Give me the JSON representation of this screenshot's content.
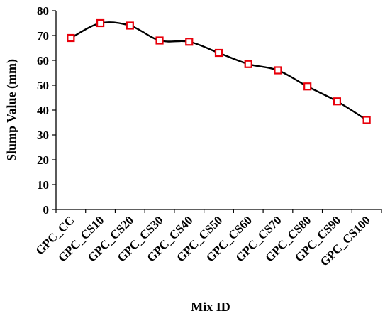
{
  "chart_data": {
    "type": "line",
    "categories": [
      "GPC_CC",
      "GPC_CS10",
      "GPC_CS20",
      "GPC_CS30",
      "GPC_CS40",
      "GPC_CS50",
      "GPC_CS60",
      "GPC_CS70",
      "GPC_CS80",
      "GPC_CS90",
      "GPC_CS100"
    ],
    "series": [
      {
        "values": [
          69,
          75,
          74,
          68,
          67.5,
          63,
          58.5,
          56,
          49.5,
          43.5,
          36
        ],
        "line_color": "#000000",
        "marker": "square",
        "marker_color": "#e8000b"
      }
    ],
    "xlabel": "Mix ID",
    "ylabel": "Slump Value (mm)",
    "ylim": [
      0,
      80
    ],
    "yticks": [
      0,
      10,
      20,
      30,
      40,
      50,
      60,
      70,
      80
    ],
    "grid": false,
    "smooth": true
  }
}
